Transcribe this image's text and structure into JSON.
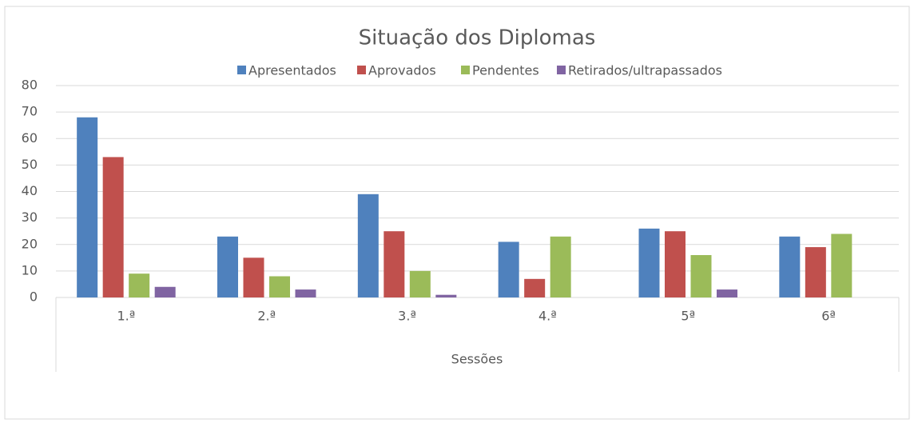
{
  "chart_data": {
    "type": "bar",
    "title": "Situação dos Diplomas",
    "x_label": "Sessões",
    "categories": [
      "1.ª",
      "2.ª",
      "3.ª",
      "4.ª",
      "5ª",
      "6ª"
    ],
    "series": [
      {
        "name": "Apresentados",
        "color": "#4f81bd",
        "values": [
          68,
          23,
          39,
          21,
          26,
          23
        ]
      },
      {
        "name": "Aprovados",
        "color": "#c0504d",
        "values": [
          53,
          15,
          25,
          7,
          25,
          19
        ]
      },
      {
        "name": "Pendentes",
        "color": "#9bbb59",
        "values": [
          9,
          8,
          10,
          23,
          16,
          24
        ]
      },
      {
        "name": "Retirados/ultrapassados",
        "color": "#8064a2",
        "values": [
          4,
          3,
          1,
          0,
          3,
          0
        ]
      }
    ],
    "ylim": [
      0,
      80
    ],
    "yticks": [
      0,
      10,
      20,
      30,
      40,
      50,
      60,
      70,
      80
    ],
    "grid": true,
    "legend": "top"
  }
}
